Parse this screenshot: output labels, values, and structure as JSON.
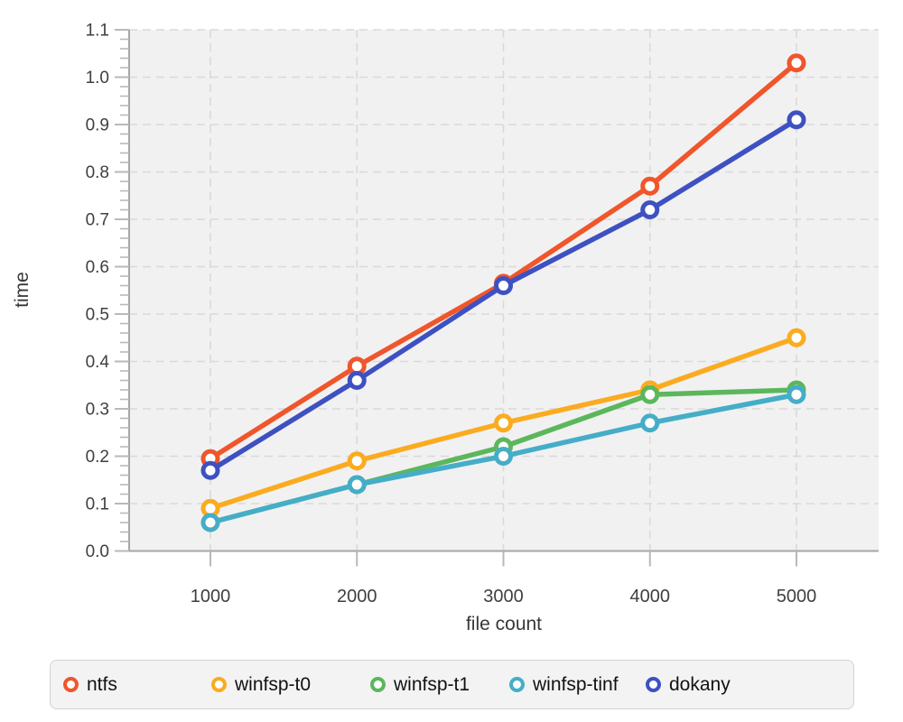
{
  "chart_data": {
    "type": "line",
    "title": "",
    "xlabel": "file count",
    "ylabel": "time",
    "x": [
      1000,
      2000,
      3000,
      4000,
      5000
    ],
    "x_tick_labels": [
      "1000",
      "2000",
      "3000",
      "4000",
      "5000"
    ],
    "ylim": [
      0.0,
      1.1
    ],
    "y_ticks": [
      0.0,
      0.1,
      0.2,
      0.3,
      0.4,
      0.5,
      0.6,
      0.7,
      0.8,
      0.9,
      1.0,
      1.1
    ],
    "y_tick_labels": [
      "0.0",
      "0.1",
      "0.2",
      "0.3",
      "0.4",
      "0.5",
      "0.6",
      "0.7",
      "0.8",
      "0.9",
      "1.0",
      "1.1"
    ],
    "y_minor_tick_step": 0.02,
    "grid": "dashed",
    "marker": "open-circle",
    "legend_position": "bottom",
    "series": [
      {
        "name": "ntfs",
        "color": "#f0562b",
        "values": [
          0.195,
          0.39,
          0.565,
          0.77,
          1.03
        ]
      },
      {
        "name": "winfsp-t0",
        "color": "#fbab20",
        "values": [
          0.09,
          0.19,
          0.27,
          0.34,
          0.45
        ]
      },
      {
        "name": "winfsp-t1",
        "color": "#5cb75c",
        "values": [
          0.06,
          0.14,
          0.22,
          0.33,
          0.34
        ]
      },
      {
        "name": "winfsp-tinf",
        "color": "#45adc8",
        "values": [
          0.06,
          0.14,
          0.2,
          0.27,
          0.33
        ]
      },
      {
        "name": "dokany",
        "color": "#3e51c1",
        "values": [
          0.17,
          0.36,
          0.56,
          0.72,
          0.91
        ]
      }
    ]
  },
  "colors": {
    "plot_bg": "#f1f1f2",
    "grid": "#d9d9d9",
    "axis_line": "#a6a6a6",
    "tick": "#b9b9b9",
    "marker_fill": "#ffffff",
    "legend_bg": "#f3f3f4",
    "legend_border": "#d2d2d2"
  }
}
